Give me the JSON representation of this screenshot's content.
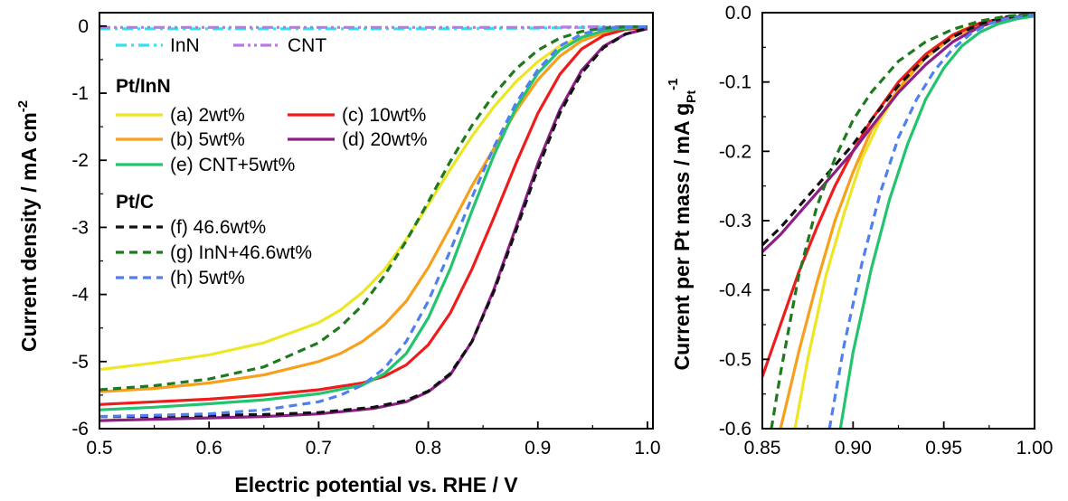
{
  "chart_data": [
    {
      "type": "line",
      "xlabel": "Electric potential vs. RHE / V",
      "ylabel": "Current density / mA cm",
      "ylabel_sup": "-2",
      "xlim": [
        0.5,
        1.005
      ],
      "ylim": [
        -6.0,
        0.2
      ],
      "xticks": [
        "0.5",
        "0.6",
        "0.7",
        "0.8",
        "0.9",
        "1.0"
      ],
      "yticks": [
        "0",
        "-1",
        "-2",
        "-3",
        "-4",
        "-5",
        "-6"
      ],
      "legend": {
        "group1": [
          {
            "label": "InN",
            "series": "InN"
          },
          {
            "label": "CNT",
            "series": "CNT"
          }
        ],
        "heading_ptinn": "Pt/InN",
        "group2": [
          {
            "label": "(a) 2wt%",
            "series": "a"
          },
          {
            "label": "(c) 10wt%",
            "series": "c"
          },
          {
            "label": "(b) 5wt%",
            "series": "b"
          },
          {
            "label": "(d) 20wt%",
            "series": "d"
          },
          {
            "label": "(e) CNT+5wt%",
            "series": "e"
          }
        ],
        "heading_ptc": "Pt/C",
        "group3": [
          {
            "label": "(f) 46.6wt%",
            "series": "f"
          },
          {
            "label": "(g) InN+46.6wt%",
            "series": "g"
          },
          {
            "label": "(h) 5wt%",
            "series": "h"
          }
        ]
      },
      "series": [
        {
          "name": "InN",
          "color": "#33e0ee",
          "dash": "dashdot",
          "x": [
            0.5,
            0.6,
            0.7,
            0.8,
            0.9,
            0.95,
            1.0
          ],
          "y": [
            -0.04,
            -0.04,
            -0.04,
            -0.04,
            -0.03,
            -0.02,
            -0.01
          ]
        },
        {
          "name": "CNT",
          "color": "#b77be6",
          "dash": "dashdotdot",
          "x": [
            0.5,
            0.6,
            0.7,
            0.8,
            0.9,
            0.95,
            1.0
          ],
          "y": [
            -0.02,
            -0.02,
            -0.02,
            -0.02,
            -0.02,
            -0.01,
            -0.01
          ]
        },
        {
          "name": "a",
          "color": "#ece624",
          "dash": "solid",
          "x": [
            0.5,
            0.55,
            0.6,
            0.65,
            0.7,
            0.72,
            0.74,
            0.76,
            0.78,
            0.8,
            0.82,
            0.84,
            0.86,
            0.88,
            0.9,
            0.92,
            0.94,
            0.96,
            0.98,
            1.0
          ],
          "y": [
            -5.12,
            -5.02,
            -4.9,
            -4.72,
            -4.42,
            -4.23,
            -3.97,
            -3.63,
            -3.18,
            -2.66,
            -2.14,
            -1.64,
            -1.2,
            -0.83,
            -0.53,
            -0.3,
            -0.16,
            -0.08,
            -0.04,
            -0.02
          ]
        },
        {
          "name": "b",
          "color": "#f7a01c",
          "dash": "solid",
          "x": [
            0.5,
            0.55,
            0.6,
            0.65,
            0.7,
            0.72,
            0.74,
            0.76,
            0.78,
            0.8,
            0.82,
            0.84,
            0.86,
            0.88,
            0.9,
            0.92,
            0.94,
            0.96,
            0.98,
            1.0
          ],
          "y": [
            -5.45,
            -5.4,
            -5.32,
            -5.2,
            -5.0,
            -4.88,
            -4.7,
            -4.45,
            -4.1,
            -3.6,
            -3.0,
            -2.38,
            -1.82,
            -1.27,
            -0.8,
            -0.45,
            -0.22,
            -0.1,
            -0.04,
            -0.02
          ]
        },
        {
          "name": "c",
          "color": "#ee1c1c",
          "dash": "solid",
          "x": [
            0.5,
            0.55,
            0.6,
            0.65,
            0.7,
            0.74,
            0.76,
            0.78,
            0.8,
            0.82,
            0.84,
            0.86,
            0.88,
            0.9,
            0.92,
            0.94,
            0.96,
            0.98,
            1.0
          ],
          "y": [
            -5.64,
            -5.6,
            -5.56,
            -5.5,
            -5.42,
            -5.32,
            -5.22,
            -5.05,
            -4.75,
            -4.28,
            -3.62,
            -2.85,
            -2.05,
            -1.3,
            -0.72,
            -0.34,
            -0.14,
            -0.05,
            -0.02
          ]
        },
        {
          "name": "d",
          "color": "#8c1e86",
          "dash": "solid",
          "x": [
            0.5,
            0.55,
            0.6,
            0.65,
            0.7,
            0.75,
            0.78,
            0.8,
            0.82,
            0.84,
            0.86,
            0.88,
            0.9,
            0.92,
            0.94,
            0.96,
            0.98,
            1.0
          ],
          "y": [
            -5.88,
            -5.86,
            -5.84,
            -5.82,
            -5.78,
            -5.7,
            -5.6,
            -5.45,
            -5.2,
            -4.7,
            -3.92,
            -3.0,
            -2.05,
            -1.25,
            -0.66,
            -0.3,
            -0.12,
            -0.04
          ]
        },
        {
          "name": "e",
          "color": "#22c46e",
          "dash": "solid",
          "x": [
            0.5,
            0.55,
            0.6,
            0.65,
            0.7,
            0.74,
            0.76,
            0.78,
            0.8,
            0.82,
            0.84,
            0.86,
            0.88,
            0.9,
            0.92,
            0.94,
            0.96,
            0.98,
            1.0
          ],
          "y": [
            -5.72,
            -5.68,
            -5.63,
            -5.57,
            -5.48,
            -5.35,
            -5.18,
            -4.88,
            -4.35,
            -3.62,
            -2.75,
            -1.92,
            -1.22,
            -0.7,
            -0.36,
            -0.17,
            -0.07,
            -0.03,
            -0.01
          ]
        },
        {
          "name": "f",
          "color": "#111111",
          "dash": "dash",
          "x": [
            0.5,
            0.55,
            0.6,
            0.65,
            0.7,
            0.75,
            0.78,
            0.8,
            0.82,
            0.84,
            0.86,
            0.88,
            0.9,
            0.92,
            0.94,
            0.96,
            0.98,
            1.0
          ],
          "y": [
            -5.82,
            -5.82,
            -5.8,
            -5.79,
            -5.76,
            -5.68,
            -5.58,
            -5.44,
            -5.18,
            -4.7,
            -3.95,
            -3.05,
            -2.12,
            -1.3,
            -0.7,
            -0.32,
            -0.12,
            -0.03
          ]
        },
        {
          "name": "g",
          "color": "#1e7a1e",
          "dash": "dash",
          "x": [
            0.5,
            0.55,
            0.6,
            0.65,
            0.7,
            0.72,
            0.74,
            0.76,
            0.78,
            0.8,
            0.82,
            0.84,
            0.86,
            0.88,
            0.9,
            0.92,
            0.94,
            0.96,
            0.98,
            1.0
          ],
          "y": [
            -5.42,
            -5.36,
            -5.26,
            -5.08,
            -4.72,
            -4.48,
            -4.16,
            -3.72,
            -3.2,
            -2.62,
            -2.02,
            -1.48,
            -1.02,
            -0.64,
            -0.36,
            -0.18,
            -0.08,
            -0.03,
            -0.01,
            -0.01
          ]
        },
        {
          "name": "h",
          "color": "#4f7ff0",
          "dash": "dash",
          "x": [
            0.5,
            0.55,
            0.6,
            0.65,
            0.7,
            0.72,
            0.74,
            0.76,
            0.78,
            0.8,
            0.82,
            0.84,
            0.86,
            0.88,
            0.9,
            0.92,
            0.94,
            0.96,
            0.98,
            1.0
          ],
          "y": [
            -5.82,
            -5.8,
            -5.78,
            -5.72,
            -5.6,
            -5.5,
            -5.35,
            -5.1,
            -4.7,
            -4.1,
            -3.35,
            -2.55,
            -1.8,
            -1.15,
            -0.65,
            -0.3,
            -0.12,
            -0.04,
            -0.01,
            -0.01
          ]
        }
      ]
    },
    {
      "type": "line",
      "xlabel": "",
      "ylabel": "Current per Pt mass / mA g",
      "ylabel_sub": "Pt",
      "ylabel_sup": "-1",
      "xlim": [
        0.85,
        1.0
      ],
      "ylim": [
        -0.6,
        0.0
      ],
      "xticks": [
        "0.85",
        "0.90",
        "0.95",
        "1.00"
      ],
      "yticks": [
        "0.0",
        "-0.1",
        "-0.2",
        "-0.3",
        "-0.4",
        "-0.5",
        "-0.6"
      ],
      "series": [
        {
          "name": "a",
          "color": "#ece624",
          "dash": "solid",
          "x": [
            0.868,
            0.875,
            0.885,
            0.895,
            0.905,
            0.915,
            0.93,
            0.945,
            0.96,
            0.975,
            0.99,
            1.0
          ],
          "y": [
            -0.6,
            -0.5,
            -0.38,
            -0.29,
            -0.21,
            -0.155,
            -0.09,
            -0.05,
            -0.025,
            -0.012,
            -0.006,
            -0.004
          ]
        },
        {
          "name": "b",
          "color": "#f7a01c",
          "dash": "solid",
          "x": [
            0.86,
            0.87,
            0.88,
            0.89,
            0.9,
            0.91,
            0.925,
            0.94,
            0.955,
            0.97,
            0.985,
            1.0
          ],
          "y": [
            -0.6,
            -0.49,
            -0.39,
            -0.3,
            -0.23,
            -0.17,
            -0.11,
            -0.065,
            -0.035,
            -0.017,
            -0.008,
            -0.004
          ]
        },
        {
          "name": "c",
          "color": "#ee1c1c",
          "dash": "solid",
          "x": [
            0.85,
            0.86,
            0.87,
            0.88,
            0.89,
            0.9,
            0.91,
            0.925,
            0.94,
            0.955,
            0.97,
            0.985,
            1.0
          ],
          "y": [
            -0.525,
            -0.45,
            -0.375,
            -0.31,
            -0.25,
            -0.2,
            -0.155,
            -0.1,
            -0.06,
            -0.032,
            -0.015,
            -0.007,
            -0.004
          ]
        },
        {
          "name": "d",
          "color": "#8c1e86",
          "dash": "solid",
          "x": [
            0.85,
            0.86,
            0.87,
            0.88,
            0.89,
            0.9,
            0.91,
            0.925,
            0.94,
            0.955,
            0.97,
            0.985,
            1.0
          ],
          "y": [
            -0.345,
            -0.32,
            -0.29,
            -0.26,
            -0.23,
            -0.2,
            -0.165,
            -0.115,
            -0.075,
            -0.042,
            -0.02,
            -0.008,
            -0.003
          ]
        },
        {
          "name": "e",
          "color": "#22c46e",
          "dash": "solid",
          "x": [
            0.893,
            0.9,
            0.91,
            0.92,
            0.93,
            0.94,
            0.95,
            0.96,
            0.97,
            0.98,
            0.99,
            1.0
          ],
          "y": [
            -0.6,
            -0.49,
            -0.37,
            -0.27,
            -0.19,
            -0.125,
            -0.08,
            -0.048,
            -0.028,
            -0.016,
            -0.009,
            -0.005
          ]
        },
        {
          "name": "f",
          "color": "#111111",
          "dash": "dash",
          "x": [
            0.85,
            0.86,
            0.87,
            0.88,
            0.89,
            0.9,
            0.91,
            0.925,
            0.94,
            0.955,
            0.97,
            0.985,
            1.0
          ],
          "y": [
            -0.335,
            -0.31,
            -0.28,
            -0.25,
            -0.22,
            -0.19,
            -0.155,
            -0.105,
            -0.065,
            -0.035,
            -0.016,
            -0.006,
            -0.002
          ]
        },
        {
          "name": "g",
          "color": "#1e7a1e",
          "dash": "dash",
          "x": [
            0.855,
            0.86,
            0.87,
            0.88,
            0.89,
            0.9,
            0.91,
            0.925,
            0.94,
            0.955,
            0.97,
            0.985,
            1.0
          ],
          "y": [
            -0.6,
            -0.52,
            -0.38,
            -0.28,
            -0.21,
            -0.155,
            -0.115,
            -0.07,
            -0.042,
            -0.024,
            -0.012,
            -0.005,
            -0.002
          ]
        },
        {
          "name": "h",
          "color": "#4f7ff0",
          "dash": "dash",
          "x": [
            0.887,
            0.895,
            0.905,
            0.915,
            0.925,
            0.935,
            0.945,
            0.955,
            0.965,
            0.975,
            0.985,
            1.0
          ],
          "y": [
            -0.6,
            -0.48,
            -0.36,
            -0.26,
            -0.18,
            -0.125,
            -0.083,
            -0.052,
            -0.03,
            -0.016,
            -0.008,
            -0.003
          ]
        }
      ]
    }
  ]
}
